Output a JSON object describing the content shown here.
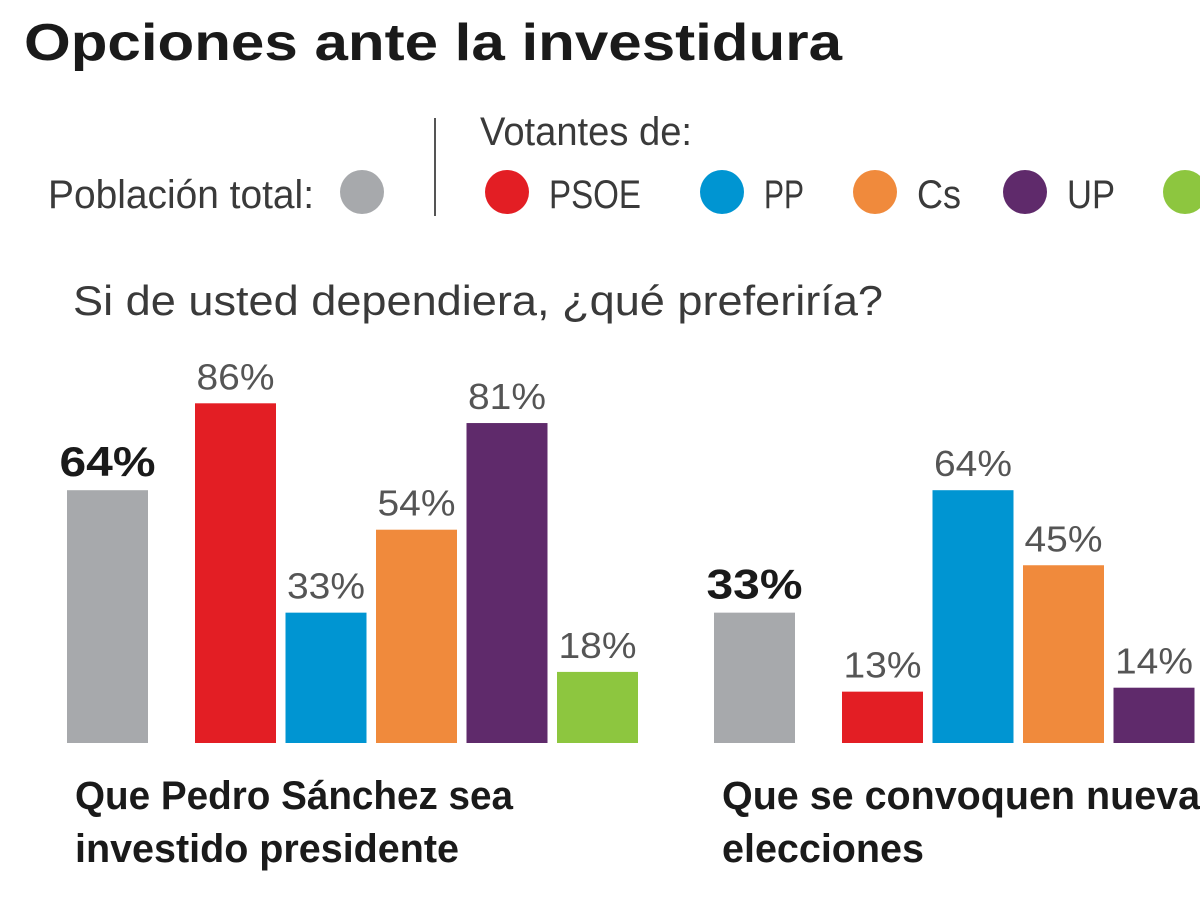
{
  "chart_data": {
    "type": "bar",
    "title": "Opciones ante la investidura",
    "subtitle": "Si de usted dependiera, ¿qué preferiría?",
    "legend": {
      "total_label": "Población total:",
      "voters_label": "Votantes de:",
      "placement": "top",
      "entries": [
        {
          "name": "PSOE",
          "color": "#e31e24"
        },
        {
          "name": "PP",
          "color": "#0095d2"
        },
        {
          "name": "Cs",
          "color": "#f08a3c"
        },
        {
          "name": "UP",
          "color": "#5f2a6b"
        },
        {
          "name": "",
          "color": "#8dc63f"
        }
      ],
      "total_color": "#a7a9ac"
    },
    "ylim": [
      0,
      100
    ],
    "grid": false,
    "groups": [
      {
        "label_lines": [
          "Que Pedro Sánchez sea",
          "investido presidente"
        ],
        "bars": [
          {
            "series": "Población total",
            "value": 64,
            "label": "64%"
          },
          {
            "series": "PSOE",
            "value": 86,
            "label": "86%"
          },
          {
            "series": "PP",
            "value": 33,
            "label": "33%"
          },
          {
            "series": "Cs",
            "value": 54,
            "label": "54%"
          },
          {
            "series": "UP",
            "value": 81,
            "label": "81%"
          },
          {
            "series": "green",
            "value": 18,
            "label": "18%"
          }
        ]
      },
      {
        "label_lines": [
          "Que se convoquen nuevas",
          "elecciones"
        ],
        "bars": [
          {
            "series": "Población total",
            "value": 33,
            "label": "33%"
          },
          {
            "series": "PSOE",
            "value": 13,
            "label": "13%"
          },
          {
            "series": "PP",
            "value": 64,
            "label": "64%"
          },
          {
            "series": "Cs",
            "value": 45,
            "label": "45%"
          },
          {
            "series": "UP",
            "value": 14,
            "label": "14%"
          }
        ]
      }
    ]
  }
}
